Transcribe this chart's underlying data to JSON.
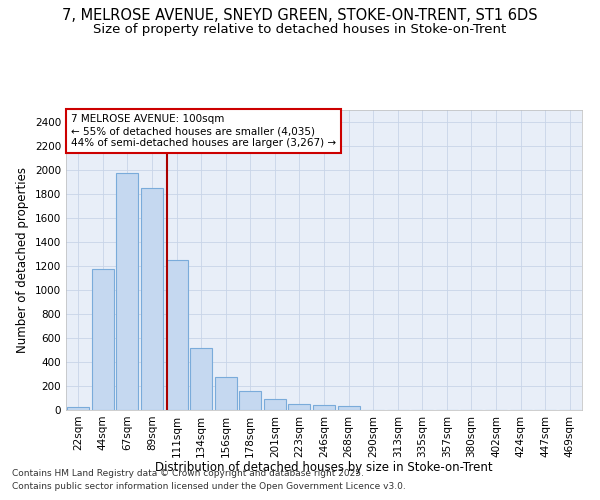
{
  "title_line1": "7, MELROSE AVENUE, SNEYD GREEN, STOKE-ON-TRENT, ST1 6DS",
  "title_line2": "Size of property relative to detached houses in Stoke-on-Trent",
  "xlabel": "Distribution of detached houses by size in Stoke-on-Trent",
  "ylabel": "Number of detached properties",
  "categories": [
    "22sqm",
    "44sqm",
    "67sqm",
    "89sqm",
    "111sqm",
    "134sqm",
    "156sqm",
    "178sqm",
    "201sqm",
    "223sqm",
    "246sqm",
    "268sqm",
    "290sqm",
    "313sqm",
    "335sqm",
    "357sqm",
    "380sqm",
    "402sqm",
    "424sqm",
    "447sqm",
    "469sqm"
  ],
  "values": [
    28,
    1175,
    1975,
    1850,
    1250,
    520,
    275,
    155,
    90,
    50,
    40,
    30,
    0,
    0,
    0,
    0,
    0,
    0,
    0,
    0,
    0
  ],
  "bar_color": "#c5d8f0",
  "bar_edge_color": "#7aabda",
  "vline_color": "#aa0000",
  "annotation_text": "7 MELROSE AVENUE: 100sqm\n← 55% of detached houses are smaller (4,035)\n44% of semi-detached houses are larger (3,267) →",
  "annotation_box_color": "#cc0000",
  "ylim": [
    0,
    2500
  ],
  "yticks": [
    0,
    200,
    400,
    600,
    800,
    1000,
    1200,
    1400,
    1600,
    1800,
    2000,
    2200,
    2400
  ],
  "grid_color": "#c8d4e8",
  "bg_color": "#e8eef8",
  "footer_line1": "Contains HM Land Registry data © Crown copyright and database right 2025.",
  "footer_line2": "Contains public sector information licensed under the Open Government Licence v3.0.",
  "title_fontsize": 10.5,
  "subtitle_fontsize": 9.5,
  "axis_label_fontsize": 8.5,
  "tick_fontsize": 7.5,
  "annotation_fontsize": 7.5,
  "footer_fontsize": 6.5
}
